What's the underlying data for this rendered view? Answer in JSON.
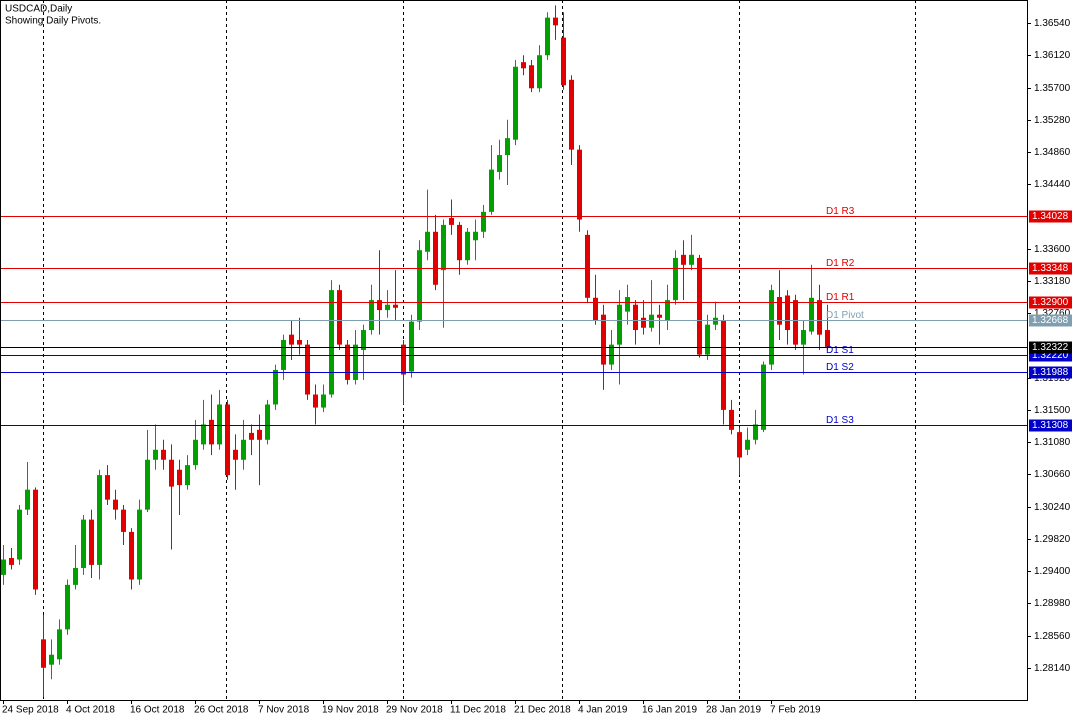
{
  "chart_data": {
    "type": "candlestick",
    "title": "USDCAD,Daily",
    "subtitle": "Showing Daily Pivots.",
    "up_color": "#00a000",
    "down_color": "#e00000",
    "ylim": [
      1.2772,
      1.3684
    ],
    "yticks": [
      {
        "value": 1.3654,
        "label": "1.36540"
      },
      {
        "value": 1.3612,
        "label": "1.36120"
      },
      {
        "value": 1.357,
        "label": "1.35700"
      },
      {
        "value": 1.3528,
        "label": "1.35280"
      },
      {
        "value": 1.3486,
        "label": "1.34860"
      },
      {
        "value": 1.3444,
        "label": "1.34440"
      },
      {
        "value": 1.336,
        "label": "1.33600"
      },
      {
        "value": 1.3318,
        "label": "1.33180"
      },
      {
        "value": 1.3276,
        "label": "1.32760"
      },
      {
        "value": 1.3192,
        "label": "1.31920"
      },
      {
        "value": 1.315,
        "label": "1.31500"
      },
      {
        "value": 1.3108,
        "label": "1.31080"
      },
      {
        "value": 1.3066,
        "label": "1.30660"
      },
      {
        "value": 1.3024,
        "label": "1.30240"
      },
      {
        "value": 1.2982,
        "label": "1.29820"
      },
      {
        "value": 1.294,
        "label": "1.29400"
      },
      {
        "value": 1.2898,
        "label": "1.28980"
      },
      {
        "value": 1.2856,
        "label": "1.28560"
      },
      {
        "value": 1.2814,
        "label": "1.28140"
      }
    ],
    "categories": [
      "24 Sep 2018",
      null,
      null,
      null,
      null,
      null,
      null,
      null,
      "4 Oct 2018",
      null,
      null,
      null,
      null,
      null,
      null,
      null,
      "16 Oct 2018",
      null,
      null,
      null,
      null,
      null,
      null,
      null,
      "26 Oct 2018",
      null,
      null,
      null,
      null,
      null,
      null,
      null,
      "7 Nov 2018",
      null,
      null,
      null,
      null,
      null,
      null,
      null,
      "19 Nov 2018",
      null,
      null,
      null,
      null,
      null,
      null,
      null,
      "29 Nov 2018",
      null,
      null,
      null,
      null,
      null,
      null,
      null,
      "11 Dec 2018",
      null,
      null,
      null,
      null,
      null,
      null,
      null,
      "21 Dec 2018",
      null,
      null,
      null,
      null,
      null,
      null,
      null,
      "4 Jan 2019",
      null,
      null,
      null,
      null,
      null,
      null,
      null,
      "16 Jan 2019",
      null,
      null,
      null,
      null,
      null,
      null,
      null,
      "28 Jan 2019",
      null,
      null,
      null,
      null,
      null,
      null,
      null,
      "7 Feb 2019",
      null,
      null,
      null,
      null,
      null,
      null,
      null
    ],
    "candles": [
      [
        1.2935,
        1.2974,
        1.2922,
        1.2955
      ],
      [
        1.2957,
        1.297,
        1.2942,
        1.2948
      ],
      [
        1.2955,
        1.3026,
        1.2948,
        1.302
      ],
      [
        1.302,
        1.3082,
        1.3013,
        1.3046
      ],
      [
        1.3046,
        1.3049,
        1.2909,
        1.2916
      ],
      [
        1.2851,
        1.2883,
        1.2776,
        1.2814
      ],
      [
        1.2818,
        1.2851,
        1.2799,
        1.2831
      ],
      [
        1.2825,
        1.2877,
        1.2818,
        1.2864
      ],
      [
        1.2864,
        1.2929,
        1.2857,
        1.2922
      ],
      [
        1.2922,
        1.2974,
        1.2916,
        1.2944
      ],
      [
        1.2944,
        1.3013,
        1.2935,
        1.3007
      ],
      [
        1.3007,
        1.302,
        1.2931,
        1.2948
      ],
      [
        1.2948,
        1.3072,
        1.2929,
        1.3065
      ],
      [
        1.3065,
        1.3078,
        1.3026,
        1.3033
      ],
      [
        1.3033,
        1.3046,
        1.3007,
        1.302
      ],
      [
        1.302,
        1.3026,
        1.2974,
        1.2991
      ],
      [
        1.2991,
        1.2996,
        1.2916,
        1.2929
      ],
      [
        1.2929,
        1.3033,
        1.2922,
        1.302
      ],
      [
        1.302,
        1.3124,
        1.3017,
        1.3085
      ],
      [
        1.3085,
        1.3131,
        1.3072,
        1.3098
      ],
      [
        1.3098,
        1.3111,
        1.3072,
        1.3085
      ],
      [
        1.3085,
        1.3105,
        1.2968,
        1.305
      ],
      [
        1.3072,
        1.3085,
        1.3013,
        1.3052
      ],
      [
        1.3052,
        1.3091,
        1.3046,
        1.3078
      ],
      [
        1.3078,
        1.3137,
        1.3072,
        1.3111
      ],
      [
        1.3105,
        1.3163,
        1.3098,
        1.3131
      ],
      [
        1.3137,
        1.317,
        1.3091,
        1.3105
      ],
      [
        1.3105,
        1.3176,
        1.3098,
        1.3157
      ],
      [
        1.3157,
        1.3163,
        1.3059,
        1.3065
      ],
      [
        1.3098,
        1.3118,
        1.3046,
        1.3085
      ],
      [
        1.3085,
        1.3137,
        1.3072,
        1.3111
      ],
      [
        1.312,
        1.3131,
        1.3091,
        1.3111
      ],
      [
        1.3124,
        1.3144,
        1.3052,
        1.3111
      ],
      [
        1.3111,
        1.3163,
        1.3105,
        1.3157
      ],
      [
        1.3157,
        1.3209,
        1.315,
        1.3202
      ],
      [
        1.3202,
        1.3248,
        1.3189,
        1.3241
      ],
      [
        1.3248,
        1.3267,
        1.3215,
        1.3235
      ],
      [
        1.3241,
        1.327,
        1.3222,
        1.3235
      ],
      [
        1.3235,
        1.3241,
        1.3163,
        1.317
      ],
      [
        1.317,
        1.3183,
        1.3131,
        1.3153
      ],
      [
        1.3153,
        1.3183,
        1.3147,
        1.317
      ],
      [
        1.317,
        1.3319,
        1.3166,
        1.3306
      ],
      [
        1.3306,
        1.3313,
        1.3228,
        1.3235
      ],
      [
        1.3235,
        1.3241,
        1.3183,
        1.3189
      ],
      [
        1.3189,
        1.3254,
        1.3183,
        1.3235
      ],
      [
        1.3228,
        1.3261,
        1.3189,
        1.3254
      ],
      [
        1.3254,
        1.3313,
        1.3248,
        1.3293
      ],
      [
        1.3293,
        1.3358,
        1.3248,
        1.328
      ],
      [
        1.328,
        1.3306,
        1.327,
        1.3287
      ],
      [
        1.3287,
        1.3332,
        1.3267,
        1.3283
      ],
      [
        1.3235,
        1.3241,
        1.3157,
        1.3196
      ],
      [
        1.32,
        1.3274,
        1.3192,
        1.3265
      ],
      [
        1.3265,
        1.3371,
        1.3254,
        1.3358
      ],
      [
        1.3356,
        1.3437,
        1.3345,
        1.3382
      ],
      [
        1.3382,
        1.3404,
        1.3306,
        1.3313
      ],
      [
        1.3332,
        1.3398,
        1.3257,
        1.3391
      ],
      [
        1.34,
        1.3424,
        1.3378,
        1.3391
      ],
      [
        1.3391,
        1.3395,
        1.3326,
        1.3345
      ],
      [
        1.3345,
        1.3387,
        1.3339,
        1.3382
      ],
      [
        1.3371,
        1.3398,
        1.3345,
        1.3382
      ],
      [
        1.3382,
        1.3417,
        1.3374,
        1.3408
      ],
      [
        1.3408,
        1.3495,
        1.3404,
        1.3463
      ],
      [
        1.346,
        1.3502,
        1.345,
        1.3482
      ],
      [
        1.3482,
        1.3528,
        1.3443,
        1.3504
      ],
      [
        1.3502,
        1.3606,
        1.3495,
        1.3597
      ],
      [
        1.3603,
        1.3612,
        1.3586,
        1.3595
      ],
      [
        1.3599,
        1.3606,
        1.3564,
        1.3569
      ],
      [
        1.3569,
        1.3625,
        1.3564,
        1.3612
      ],
      [
        1.3612,
        1.3668,
        1.3606,
        1.3661
      ],
      [
        1.3661,
        1.3677,
        1.3632,
        1.3651
      ],
      [
        1.3635,
        1.3668,
        1.3567,
        1.3573
      ],
      [
        1.358,
        1.3586,
        1.3469,
        1.3489
      ],
      [
        1.3489,
        1.3495,
        1.3382,
        1.3398
      ],
      [
        1.3378,
        1.3384,
        1.3289,
        1.3296
      ],
      [
        1.3296,
        1.3326,
        1.3261,
        1.3267
      ],
      [
        1.3274,
        1.3287,
        1.3176,
        1.3209
      ],
      [
        1.3209,
        1.3254,
        1.3202,
        1.3235
      ],
      [
        1.3235,
        1.3306,
        1.3183,
        1.3287
      ],
      [
        1.3278,
        1.3313,
        1.3261,
        1.3297
      ],
      [
        1.3287,
        1.3293,
        1.3235,
        1.3254
      ],
      [
        1.327,
        1.3293,
        1.3248,
        1.3257
      ],
      [
        1.3257,
        1.3319,
        1.3252,
        1.3274
      ],
      [
        1.3274,
        1.3287,
        1.3235,
        1.327
      ],
      [
        1.3267,
        1.3313,
        1.3254,
        1.3293
      ],
      [
        1.3293,
        1.3358,
        1.3287,
        1.3348
      ],
      [
        1.3352,
        1.3371,
        1.3293,
        1.3339
      ],
      [
        1.3339,
        1.3378,
        1.3332,
        1.3352
      ],
      [
        1.3348,
        1.3352,
        1.3218,
        1.3222
      ],
      [
        1.3222,
        1.3274,
        1.3215,
        1.3261
      ],
      [
        1.3261,
        1.3291,
        1.3254,
        1.327
      ],
      [
        1.3267,
        1.3274,
        1.3131,
        1.315
      ],
      [
        1.315,
        1.3163,
        1.3118,
        1.3124
      ],
      [
        1.3121,
        1.3127,
        1.3065,
        1.3088
      ],
      [
        1.3098,
        1.3127,
        1.3091,
        1.3111
      ],
      [
        1.3111,
        1.315,
        1.3105,
        1.3131
      ],
      [
        1.3124,
        1.3213,
        1.3121,
        1.3209
      ],
      [
        1.3209,
        1.3313,
        1.3202,
        1.3306
      ],
      [
        1.3297,
        1.3332,
        1.3241,
        1.3261
      ],
      [
        1.3299,
        1.3306,
        1.3235,
        1.3254
      ],
      [
        1.3293,
        1.33,
        1.3228,
        1.3235
      ],
      [
        1.3235,
        1.3267,
        1.3196,
        1.3254
      ],
      [
        1.3252,
        1.3339,
        1.3248,
        1.3296
      ],
      [
        1.3293,
        1.3313,
        1.3228,
        1.3248
      ],
      [
        1.3254,
        1.3287,
        1.3228,
        1.3232
      ]
    ],
    "levels": {
      "names": [
        "D1 R3",
        "D1 R2",
        "D1 R1",
        "D1 Pivot",
        "D1 S1",
        "D1 S2",
        "D1 S3"
      ],
      "values": [
        1.34028,
        1.33348,
        1.329,
        1.32668,
        1.3222,
        1.31988,
        1.31308
      ],
      "value_labels": [
        "1.34028",
        "1.33348",
        "1.32900",
        "1.32668",
        "1.32220",
        "1.31988",
        "1.31308"
      ],
      "colors": [
        "#e00000",
        "#e00000",
        "#e00000",
        "#7f9fb0",
        "#0000c8",
        "#0000c8",
        "#0000c8"
      ]
    },
    "current_price": 1.32322,
    "current_color": "#000000"
  }
}
